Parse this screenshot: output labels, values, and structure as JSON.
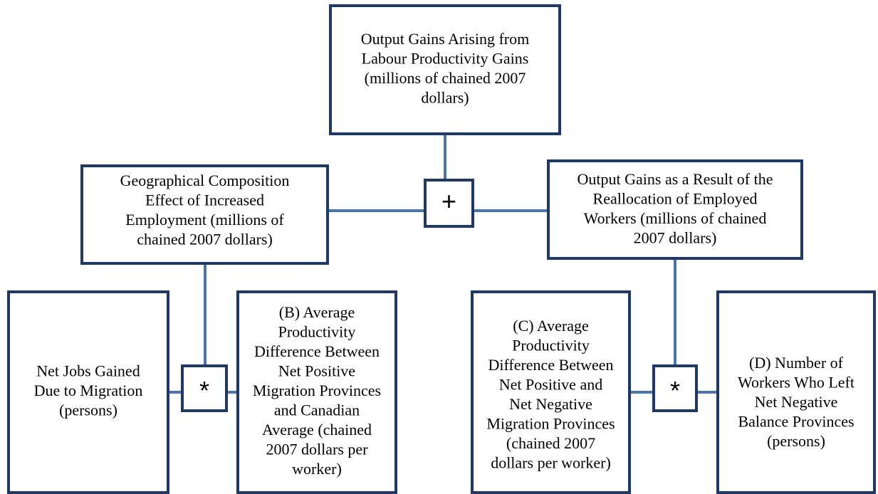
{
  "nodes": [
    {
      "lines": [
        "Output Gains Arising from",
        "Labour Productivity Gains",
        "(millions of chained 2007",
        "dollars)"
      ]
    },
    {
      "lines": [
        "Geographical Composition",
        "Effect of Increased",
        "Employment (millions of",
        "chained 2007 dollars)"
      ]
    },
    {
      "lines": [
        "Output Gains as a Result of the",
        "Reallocation of Employed",
        "Workers (millions of chained",
        "2007 dollars)"
      ]
    },
    {
      "lines": [
        "Net Jobs Gained",
        "Due to Migration",
        "(persons)"
      ]
    },
    {
      "lines": [
        "(B) Average",
        "Productivity",
        "Difference Between",
        "Net Positive",
        "Migration Provinces",
        "and Canadian",
        "Average (chained",
        "2007 dollars per",
        "worker)"
      ]
    },
    {
      "lines": [
        "(C) Average",
        "Productivity",
        "Difference Between",
        "Net Positive and",
        "Net Negative",
        "Migration Provinces",
        "(chained 2007",
        "dollars per worker)"
      ]
    },
    {
      "lines": [
        "(D) Number of",
        "Workers Who Left",
        "Net Negative",
        "Balance Provinces",
        "(persons)"
      ]
    }
  ],
  "operators": [
    "+",
    "*",
    "*"
  ]
}
